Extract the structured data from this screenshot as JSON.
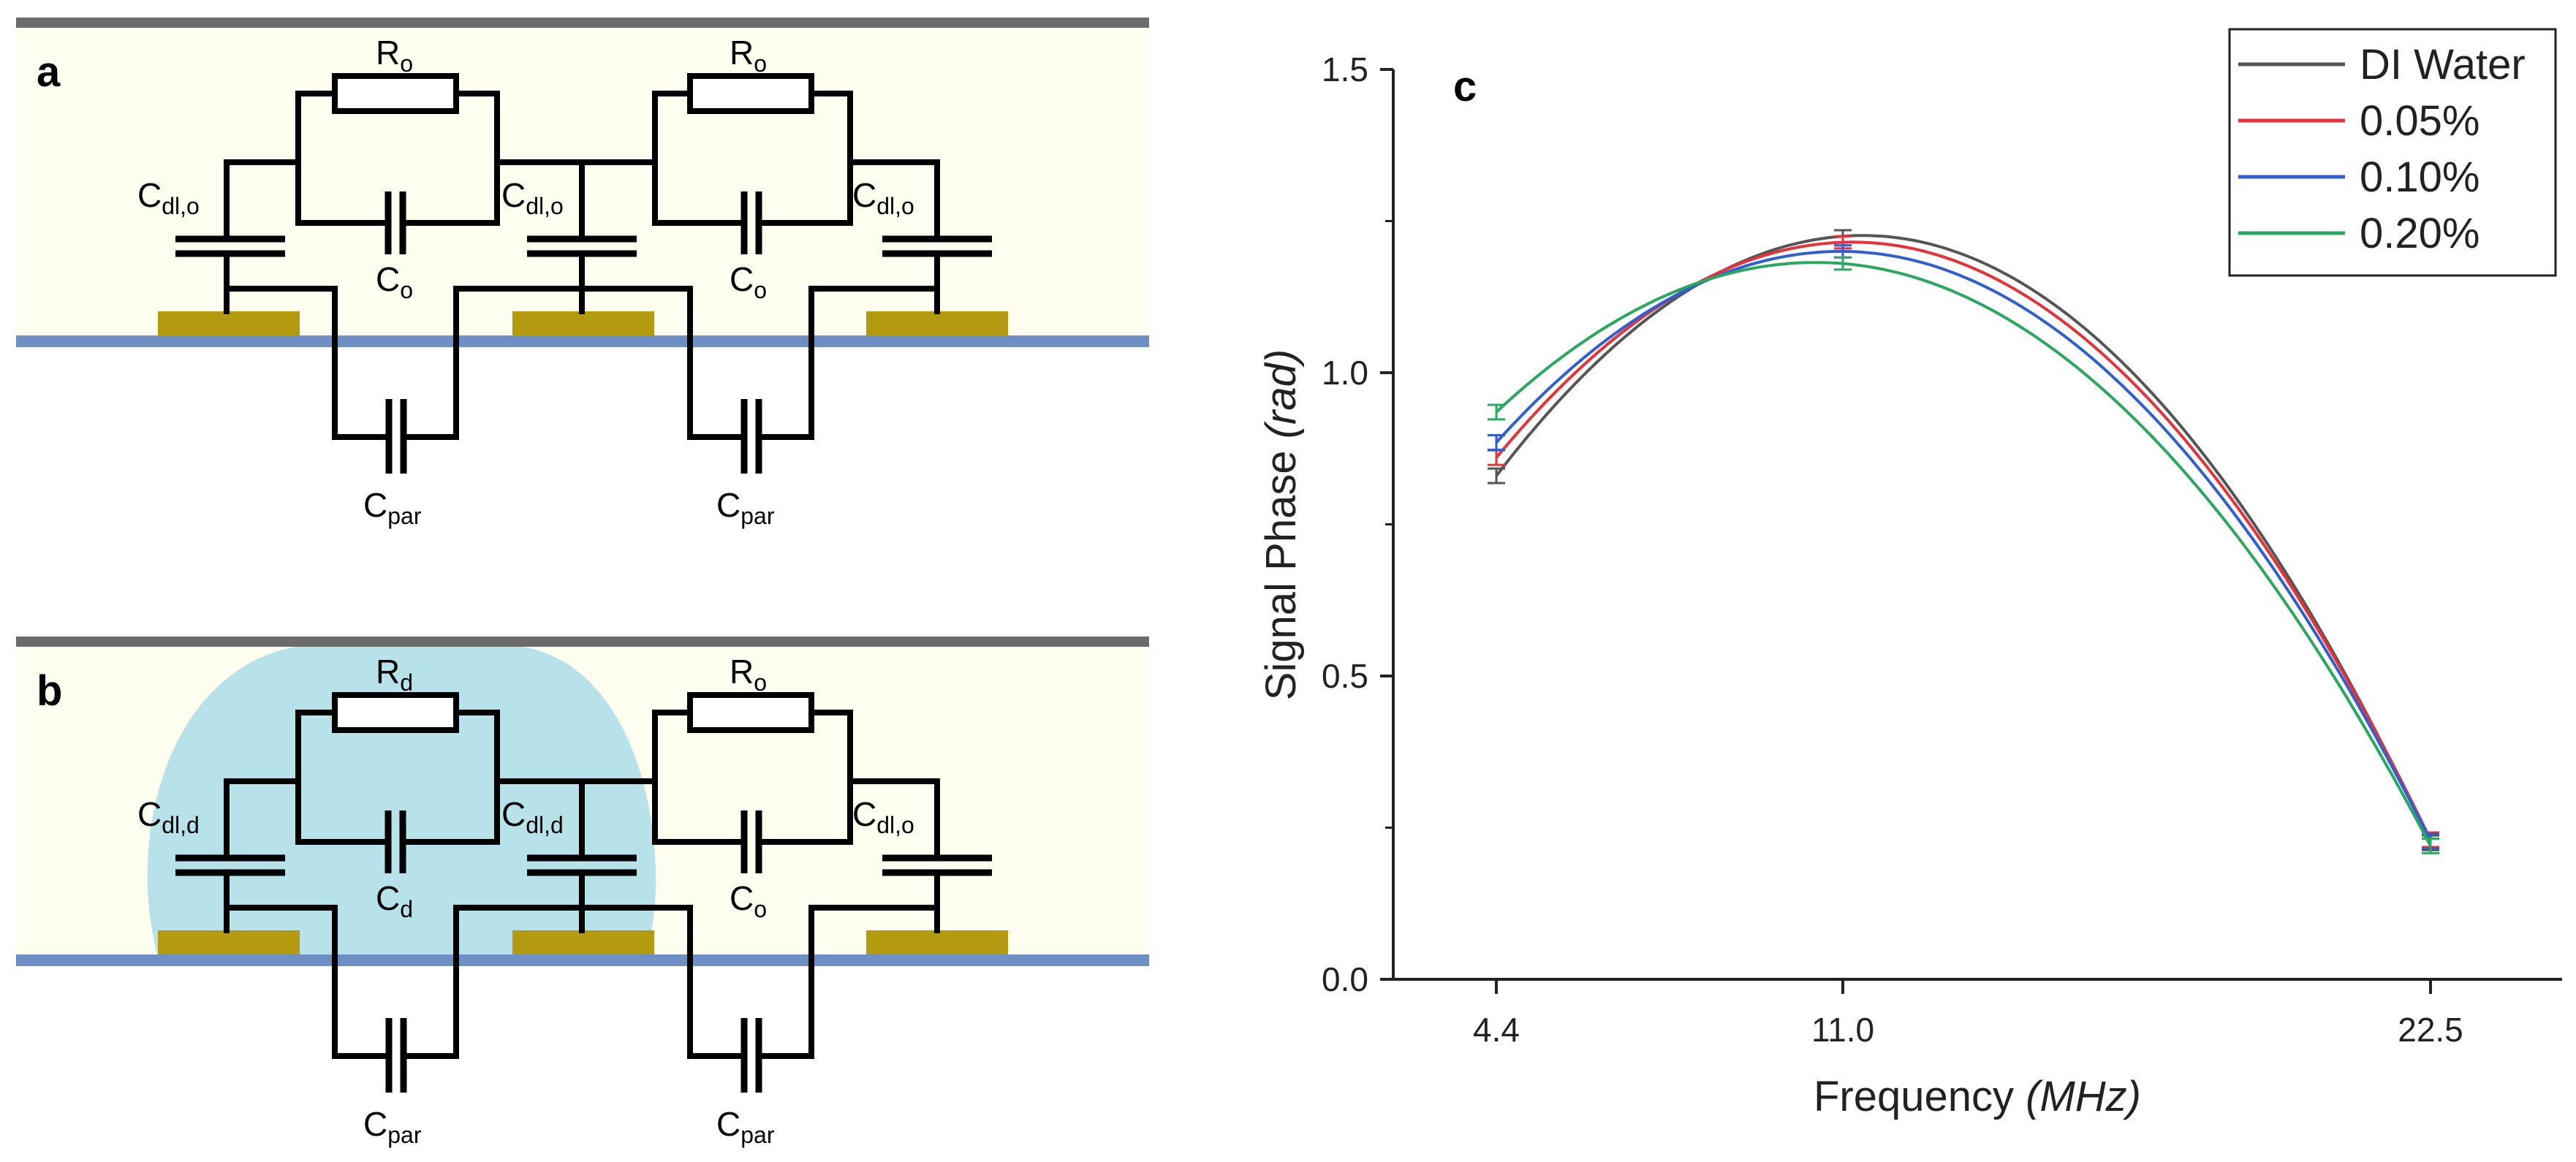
{
  "panels": {
    "a": {
      "letter": "a",
      "labels": [
        {
          "id": "r1",
          "main": "R",
          "sub": "o"
        },
        {
          "id": "r2",
          "main": "R",
          "sub": "o"
        },
        {
          "id": "co1",
          "main": "C",
          "sub": "o"
        },
        {
          "id": "co2",
          "main": "C",
          "sub": "o"
        },
        {
          "id": "cdl1",
          "main": "C",
          "sub": "dl,o"
        },
        {
          "id": "cdl2",
          "main": "C",
          "sub": "dl,o"
        },
        {
          "id": "cdl3",
          "main": "C",
          "sub": "dl,o"
        },
        {
          "id": "cp1",
          "main": "C",
          "sub": "par"
        },
        {
          "id": "cp2",
          "main": "C",
          "sub": "par"
        }
      ]
    },
    "b": {
      "letter": "b",
      "labels": [
        {
          "id": "r1",
          "main": "R",
          "sub": "d"
        },
        {
          "id": "r2",
          "main": "R",
          "sub": "o"
        },
        {
          "id": "co1",
          "main": "C",
          "sub": "d"
        },
        {
          "id": "co2",
          "main": "C",
          "sub": "o"
        },
        {
          "id": "cdl1",
          "main": "C",
          "sub": "dl,d"
        },
        {
          "id": "cdl2",
          "main": "C",
          "sub": "dl,d"
        },
        {
          "id": "cdl3",
          "main": "C",
          "sub": "dl,o"
        },
        {
          "id": "cp1",
          "main": "C",
          "sub": "par"
        },
        {
          "id": "cp2",
          "main": "C",
          "sub": "par"
        }
      ]
    }
  },
  "colors": {
    "channel_bg": "#fdfdf0",
    "top_wall": "#6b6b6b",
    "substrate": "#6d8fc4",
    "electrode": "#b39a0e",
    "droplet": "#b8e2ea"
  },
  "chart_data": {
    "panel_letter": "c",
    "type": "line",
    "title": "",
    "xlabel": "Frequency",
    "xlabel_unit": "(MHz)",
    "ylabel": "Signal Phase",
    "ylabel_unit": "(rad)",
    "x": [
      4.4,
      11.0,
      22.5
    ],
    "xticks": [
      "4.4",
      "11.0",
      "22.5"
    ],
    "ylim": [
      0.0,
      1.5
    ],
    "yticks": [
      "0.0",
      "0.5",
      "1.0",
      "1.5"
    ],
    "legend_position": "top-right",
    "series": [
      {
        "name": "DI Water",
        "color": "#555555",
        "values": [
          0.83,
          1.225,
          0.225
        ],
        "errors": [
          0.012,
          0.01,
          0.012
        ]
      },
      {
        "name": "0.05%",
        "color": "#e8323a",
        "values": [
          0.86,
          1.215,
          0.23
        ],
        "errors": [
          0.012,
          0.01,
          0.012
        ]
      },
      {
        "name": "0.10%",
        "color": "#2f5fd0",
        "values": [
          0.885,
          1.2,
          0.228
        ],
        "errors": [
          0.012,
          0.01,
          0.012
        ]
      },
      {
        "name": "0.20%",
        "color": "#2aa860",
        "values": [
          0.935,
          1.18,
          0.22
        ],
        "errors": [
          0.012,
          0.01,
          0.012
        ]
      }
    ]
  }
}
